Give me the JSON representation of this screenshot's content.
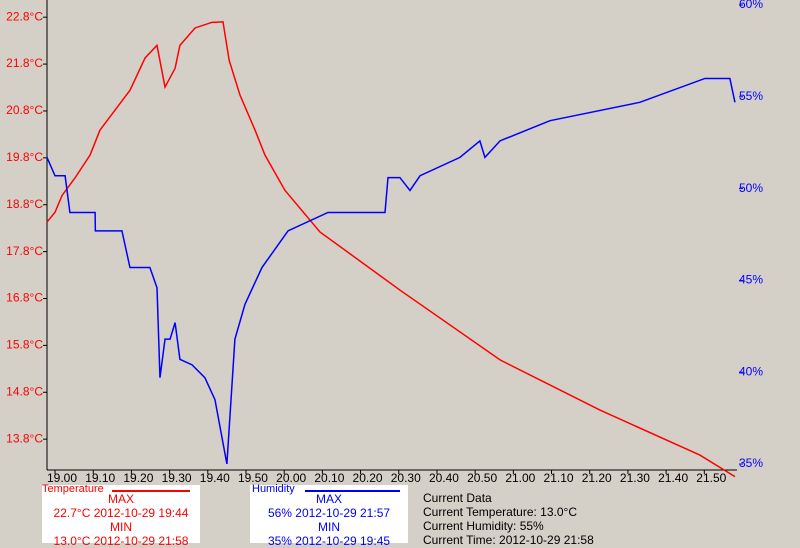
{
  "chart_data": {
    "type": "line",
    "xlim": [
      18.965,
      21.976
    ],
    "xticks": [
      {
        "value": 19.0,
        "label": "19.00"
      },
      {
        "value": 19.1667,
        "label": "19.10"
      },
      {
        "value": 19.3333,
        "label": "19.20"
      },
      {
        "value": 19.5,
        "label": "19.30"
      },
      {
        "value": 19.6667,
        "label": "19.40"
      },
      {
        "value": 19.8333,
        "label": "19.50"
      },
      {
        "value": 20.0,
        "label": "20.00"
      },
      {
        "value": 20.1667,
        "label": "20.10"
      },
      {
        "value": 20.3333,
        "label": "20.20"
      },
      {
        "value": 20.5,
        "label": "20.30"
      },
      {
        "value": 20.6667,
        "label": "20.40"
      },
      {
        "value": 20.8333,
        "label": "20.50"
      },
      {
        "value": 21.0,
        "label": "21.00"
      },
      {
        "value": 21.1667,
        "label": "21.10"
      },
      {
        "value": 21.3333,
        "label": "21.20"
      },
      {
        "value": 21.5,
        "label": "21.30"
      },
      {
        "value": 21.6667,
        "label": "21.40"
      },
      {
        "value": 21.8333,
        "label": "21.50"
      }
    ],
    "ylim": [
      13.27,
      23.06
    ],
    "yticks": [
      {
        "value": 22.8,
        "label": "22.8°C"
      },
      {
        "value": 21.8,
        "label": "21.8°C"
      },
      {
        "value": 20.8,
        "label": "20.8°C"
      },
      {
        "value": 19.8,
        "label": "19.8°C"
      },
      {
        "value": 18.8,
        "label": "18.8°C"
      },
      {
        "value": 17.8,
        "label": "17.8°C"
      },
      {
        "value": 16.8,
        "label": "16.8°C"
      },
      {
        "value": 15.8,
        "label": "15.8°C"
      },
      {
        "value": 14.8,
        "label": "14.8°C"
      },
      {
        "value": 13.8,
        "label": "13.8°C"
      }
    ],
    "y2lim": [
      35,
      60
    ],
    "y2ticks": [
      {
        "value": 60,
        "label": "60%"
      },
      {
        "value": 55,
        "label": "55%"
      },
      {
        "value": 50,
        "label": "50%"
      },
      {
        "value": 45,
        "label": "45%"
      },
      {
        "value": 40,
        "label": "40%"
      },
      {
        "value": 35,
        "label": "35%"
      }
    ],
    "series": [
      {
        "name": "Temperature",
        "color": "#ff0000",
        "x": [
          18.965,
          19.0,
          19.031,
          19.087,
          19.153,
          19.196,
          19.262,
          19.327,
          19.393,
          19.445,
          19.48,
          19.524,
          19.545,
          19.611,
          19.685,
          19.733,
          19.76,
          19.807,
          19.873,
          19.916,
          20.003,
          20.156,
          20.505,
          20.942,
          21.378,
          21.814,
          21.967
        ],
        "values": [
          18.43,
          18.64,
          19.0,
          19.37,
          19.86,
          20.39,
          20.82,
          21.24,
          21.93,
          22.2,
          21.31,
          21.71,
          22.2,
          22.57,
          22.69,
          22.7,
          21.88,
          21.14,
          20.39,
          19.86,
          19.11,
          18.22,
          16.98,
          15.49,
          14.42,
          13.46,
          13.0
        ]
      },
      {
        "name": "Humidity",
        "color": "#0000ff",
        "axis": "y2",
        "x": [
          18.965,
          19.0,
          19.044,
          19.065,
          19.175,
          19.176,
          19.292,
          19.327,
          19.414,
          19.445,
          19.458,
          19.48,
          19.502,
          19.524,
          19.545,
          19.598,
          19.654,
          19.698,
          19.75,
          19.785,
          19.829,
          19.903,
          20.017,
          20.191,
          20.44,
          20.453,
          20.505,
          20.549,
          20.593,
          20.767,
          20.854,
          20.876,
          20.942,
          21.16,
          21.552,
          21.836,
          21.945,
          21.967
        ],
        "values": [
          51.7,
          50.7,
          50.7,
          48.7,
          48.7,
          47.7,
          47.7,
          45.7,
          45.7,
          44.6,
          39.7,
          41.8,
          41.8,
          42.7,
          40.7,
          40.4,
          39.7,
          38.5,
          35,
          41.8,
          43.7,
          45.7,
          47.7,
          48.7,
          48.7,
          50.6,
          50.6,
          49.9,
          50.7,
          51.7,
          52.6,
          51.7,
          52.6,
          53.7,
          54.7,
          56,
          56,
          54.7
        ]
      }
    ]
  },
  "panels": [
    {
      "max_label": "MAX",
      "max": "22.7°C 2012-10-29 19:44",
      "min_label": "MIN",
      "min": "13.0°C 2012-10-29 21:58"
    },
    {
      "max_label": "MAX",
      "max": "56% 2012-10-29 21:57",
      "min_label": "MIN",
      "min": "35% 2012-10-29 19:45"
    }
  ],
  "current": {
    "title": "Current Data",
    "temperature": "Current Temperature: 13.0°C",
    "humidity": "Current Humidity: 55%",
    "time": "Current Time: 2012-10-29 21:58"
  }
}
